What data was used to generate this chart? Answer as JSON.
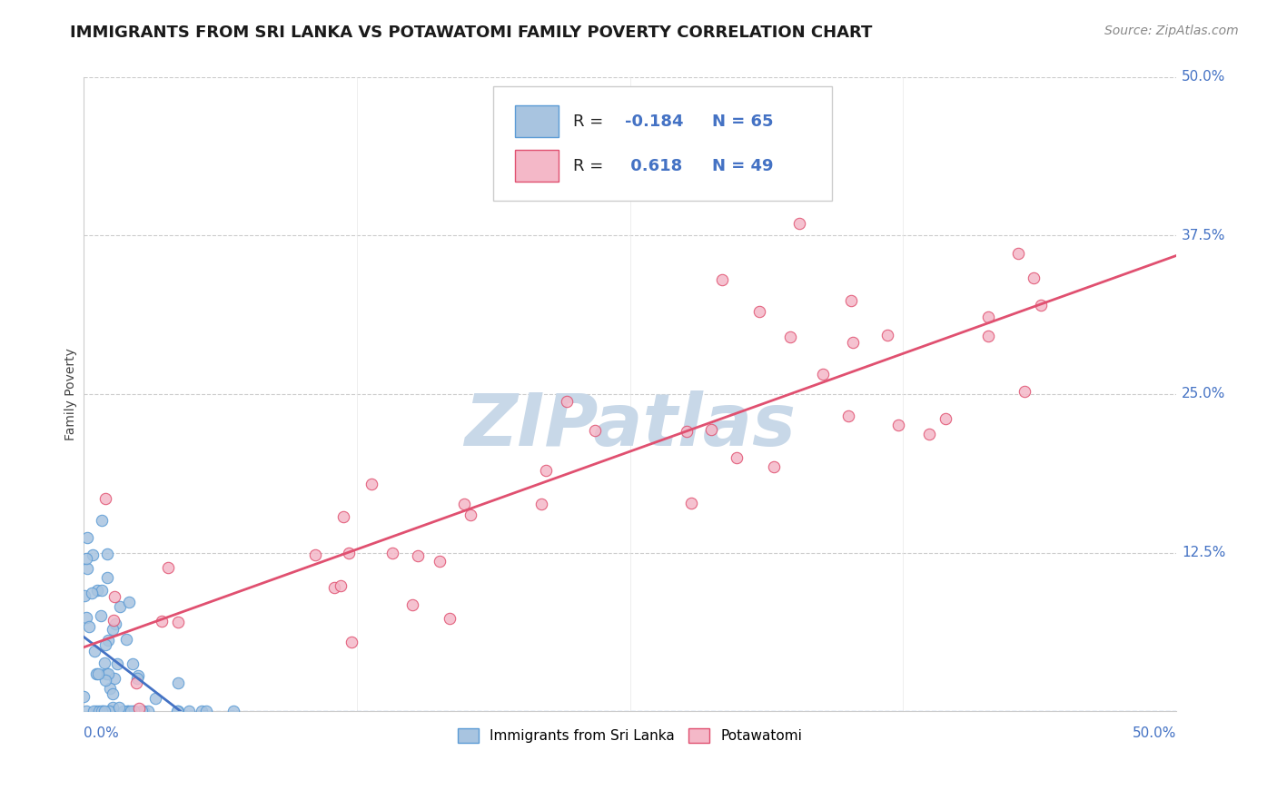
{
  "title": "IMMIGRANTS FROM SRI LANKA VS POTAWATOMI FAMILY POVERTY CORRELATION CHART",
  "source_text": "Source: ZipAtlas.com",
  "ylabel": "Family Poverty",
  "xlim": [
    0.0,
    0.5
  ],
  "ylim": [
    0.0,
    0.5
  ],
  "xtick_labels_outer": [
    "0.0%",
    "50.0%"
  ],
  "xtick_vals_outer": [
    0.0,
    0.5
  ],
  "ytick_labels": [
    "12.5%",
    "25.0%",
    "37.5%",
    "50.0%"
  ],
  "ytick_vals": [
    0.125,
    0.25,
    0.375,
    0.5
  ],
  "series1_color": "#a8c4e0",
  "series1_edge": "#5b9bd5",
  "series2_color": "#f4b8c8",
  "series2_edge": "#e05070",
  "series1_label": "Immigrants from Sri Lanka",
  "series2_label": "Potawatomi",
  "R1": -0.184,
  "N1": 65,
  "R2": 0.618,
  "N2": 49,
  "line1_color": "#4472c4",
  "line2_color": "#e05070",
  "watermark": "ZIPatlas",
  "watermark_color": "#c8d8e8",
  "title_fontsize": 13,
  "axis_label_fontsize": 10,
  "tick_fontsize": 11,
  "legend_fontsize": 13,
  "source_fontsize": 10,
  "background_color": "#ffffff",
  "grid_color": "#cccccc",
  "blue_text_color": "#4472c4"
}
